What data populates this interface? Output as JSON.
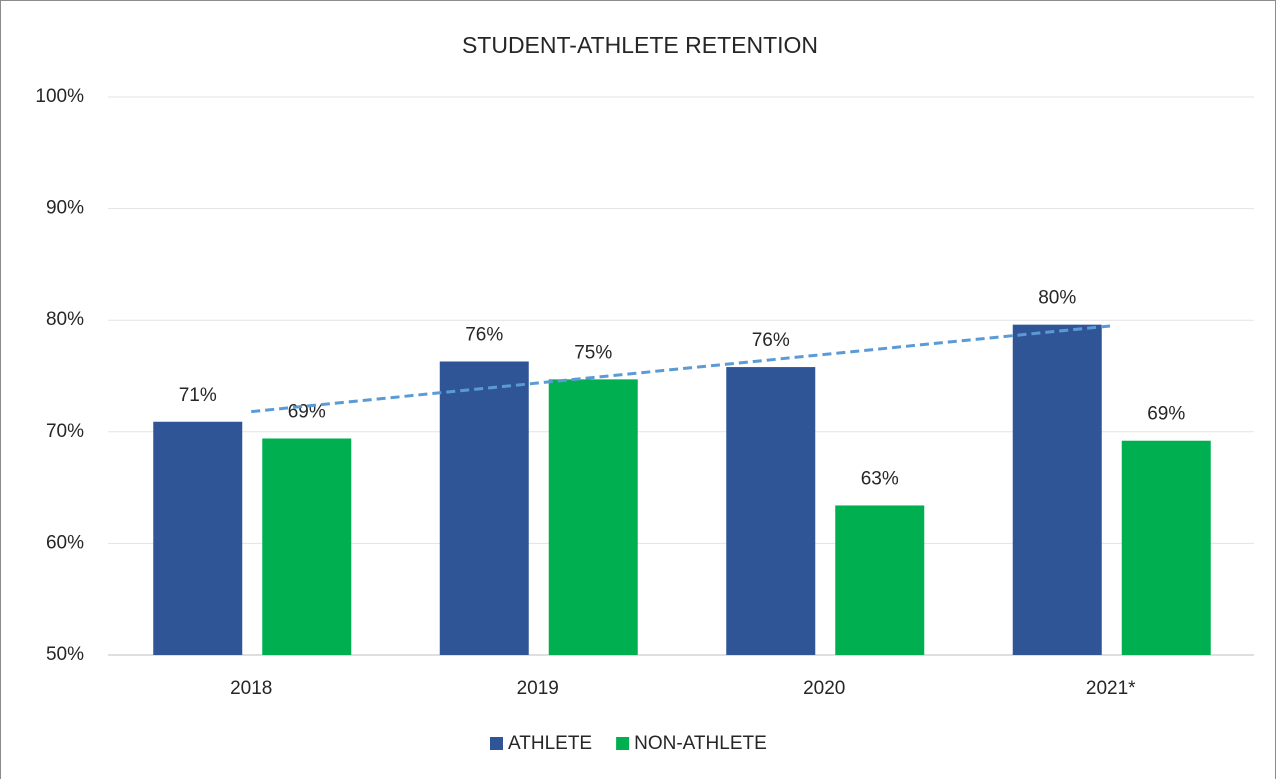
{
  "chart_data": {
    "type": "bar",
    "title": "STUDENT-ATHLETE RETENTION",
    "categories": [
      "2018",
      "2019",
      "2020",
      "2021*"
    ],
    "series": [
      {
        "name": "ATHLETE",
        "color": "#2f5597",
        "values": [
          70.9,
          76.3,
          75.8,
          79.6
        ],
        "value_labels": [
          "71%",
          "76%",
          "76%",
          "80%"
        ]
      },
      {
        "name": "NON-ATHLETE",
        "color": "#00b050",
        "values": [
          69.4,
          74.7,
          63.4,
          69.2
        ],
        "value_labels": [
          "69%",
          "75%",
          "63%",
          "69%"
        ]
      }
    ],
    "ylim": [
      50,
      100
    ],
    "yticks": [
      {
        "value": 50,
        "label": "50%"
      },
      {
        "value": 60,
        "label": "60%"
      },
      {
        "value": 70,
        "label": "70%"
      },
      {
        "value": 80,
        "label": "80%"
      },
      {
        "value": 90,
        "label": "90%"
      },
      {
        "value": 100,
        "label": "100%"
      }
    ],
    "grid": true,
    "legend": "bottom",
    "trendline": {
      "series": 0,
      "color": "#5b9bd5",
      "style": "dashed"
    }
  }
}
